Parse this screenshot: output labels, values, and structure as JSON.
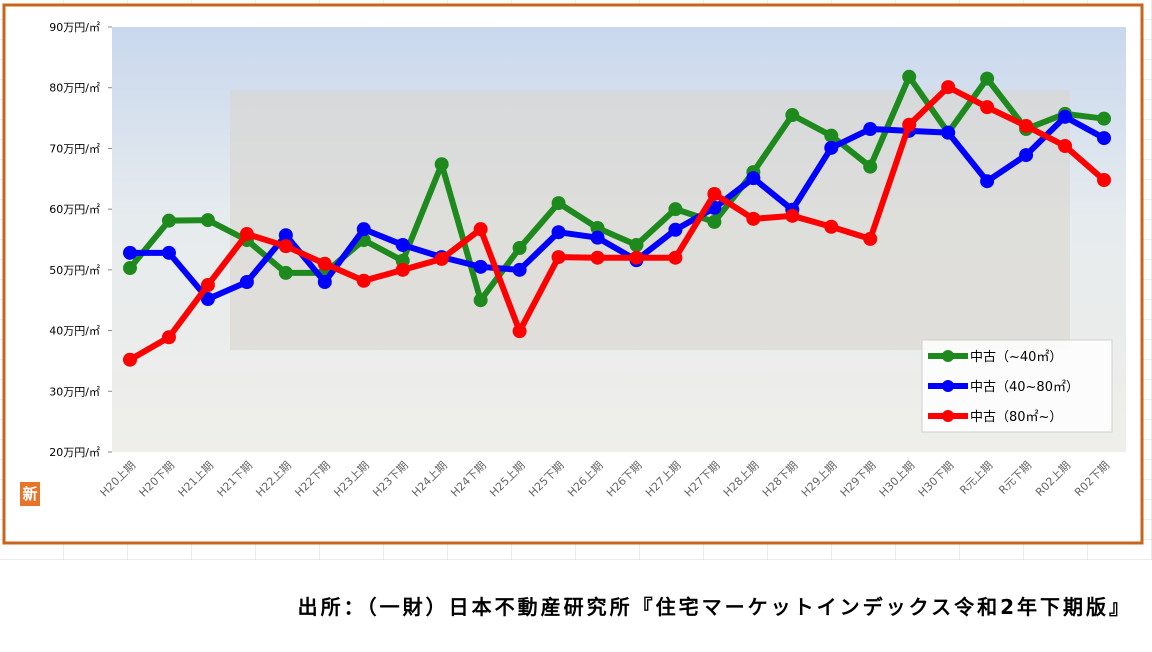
{
  "chart_data": {
    "type": "line",
    "categories": [
      "H20上期",
      "H20下期",
      "H21上期",
      "H21下期",
      "H22上期",
      "H22下期",
      "H23上期",
      "H23下期",
      "H24上期",
      "H24下期",
      "H25上期",
      "H25下期",
      "H26上期",
      "H26下期",
      "H27上期",
      "H27下期",
      "H28上期",
      "H28下期",
      "H29上期",
      "H29下期",
      "H30上期",
      "H30下期",
      "R元上期",
      "R元下期",
      "R02上期",
      "R02下期"
    ],
    "series": [
      {
        "name": "中古（~40㎡）",
        "color": "#1e8a1e",
        "values": [
          50.3,
          58.1,
          58.2,
          54.9,
          49.5,
          49.5,
          54.9,
          51.5,
          67.4,
          45.0,
          53.6,
          61.0,
          56.9,
          54.1,
          60.0,
          57.9,
          66.1,
          75.5,
          72.1,
          67.0,
          81.8,
          72.6,
          81.5,
          73.2,
          75.7,
          74.9
        ]
      },
      {
        "name": "中古（40~80㎡）",
        "color": "#0000ff",
        "values": [
          52.8,
          52.8,
          45.2,
          48.0,
          55.7,
          48.0,
          56.7,
          54.1,
          52.1,
          50.5,
          50.0,
          56.2,
          55.3,
          51.6,
          56.6,
          60.2,
          65.1,
          59.9,
          70.1,
          73.2,
          72.9,
          72.6,
          64.6,
          68.9,
          75.2,
          71.7
        ]
      },
      {
        "name": "中古（80㎡~）",
        "color": "#ff0000",
        "values": [
          35.2,
          38.9,
          47.5,
          55.9,
          53.9,
          51.0,
          48.2,
          50.0,
          51.8,
          56.7,
          39.9,
          52.1,
          52.0,
          52.0,
          52.0,
          62.5,
          58.4,
          58.9,
          57.1,
          55.1,
          73.9,
          80.1,
          76.8,
          73.7,
          70.4,
          64.8
        ]
      }
    ],
    "ylim": [
      20,
      90
    ],
    "yticks": [
      {
        "value": 20,
        "label": "20万円/㎡"
      },
      {
        "value": 30,
        "label": "30万円/㎡"
      },
      {
        "value": 40,
        "label": "40万円/㎡"
      },
      {
        "value": 50,
        "label": "50万円/㎡"
      },
      {
        "value": 60,
        "label": "60万円/㎡"
      },
      {
        "value": 70,
        "label": "70万円/㎡"
      },
      {
        "value": 80,
        "label": "80万円/㎡"
      },
      {
        "value": 90,
        "label": "90万円/㎡"
      }
    ],
    "legend": "lower right",
    "badge": "新",
    "source": "出所：（一財）日本不動産研究所『住宅マーケットインデックス令和2年下期版』"
  }
}
